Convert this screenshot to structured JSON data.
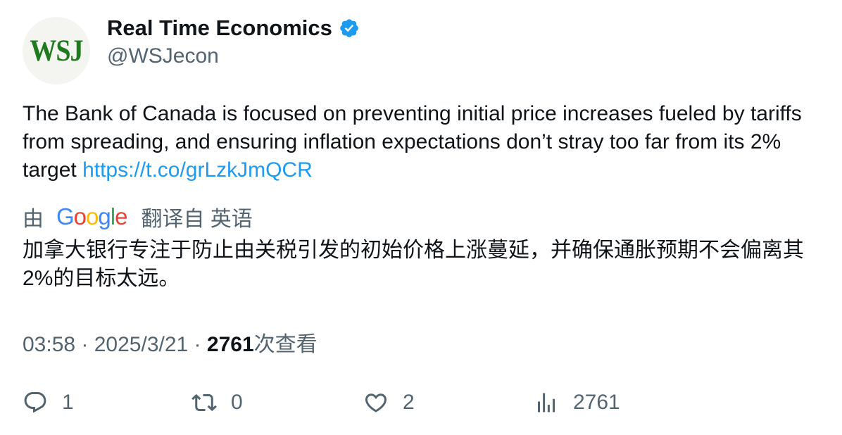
{
  "author": {
    "avatar_text": "WSJ",
    "display_name": "Real Time Economics",
    "handle": "@WSJecon",
    "verified": true
  },
  "tweet": {
    "text": "The Bank of Canada is focused on preventing initial price increases fueled by tariffs from spreading, and ensuring inflation expectations don’t stray too far from its 2% target ",
    "link": "https://t.co/grLzkJmQCR"
  },
  "translation": {
    "prefix": "由",
    "provider_letters": [
      "G",
      "o",
      "o",
      "g",
      "l",
      "e"
    ],
    "suffix": "翻译自 英语",
    "text": "加拿大银行专注于防止由关税引发的初始价格上涨蔓延，并确保通胀预期不会偏离其2%的目标太远。"
  },
  "meta": {
    "time": "03:58",
    "separator": " · ",
    "date": "2025/3/21",
    "views_count": "2761",
    "views_label": "次查看"
  },
  "actions": {
    "replies": "1",
    "retweets": "0",
    "likes": "2",
    "views": "2761"
  },
  "colors": {
    "link": "#1d9bf0",
    "secondary_text": "#536471",
    "primary_text": "#0f1419",
    "avatar_logo": "#1e7a1e",
    "verified_badge": "#1d9bf0"
  },
  "icons": [
    "verified-badge-icon",
    "reply-icon",
    "retweet-icon",
    "like-icon",
    "views-icon"
  ]
}
